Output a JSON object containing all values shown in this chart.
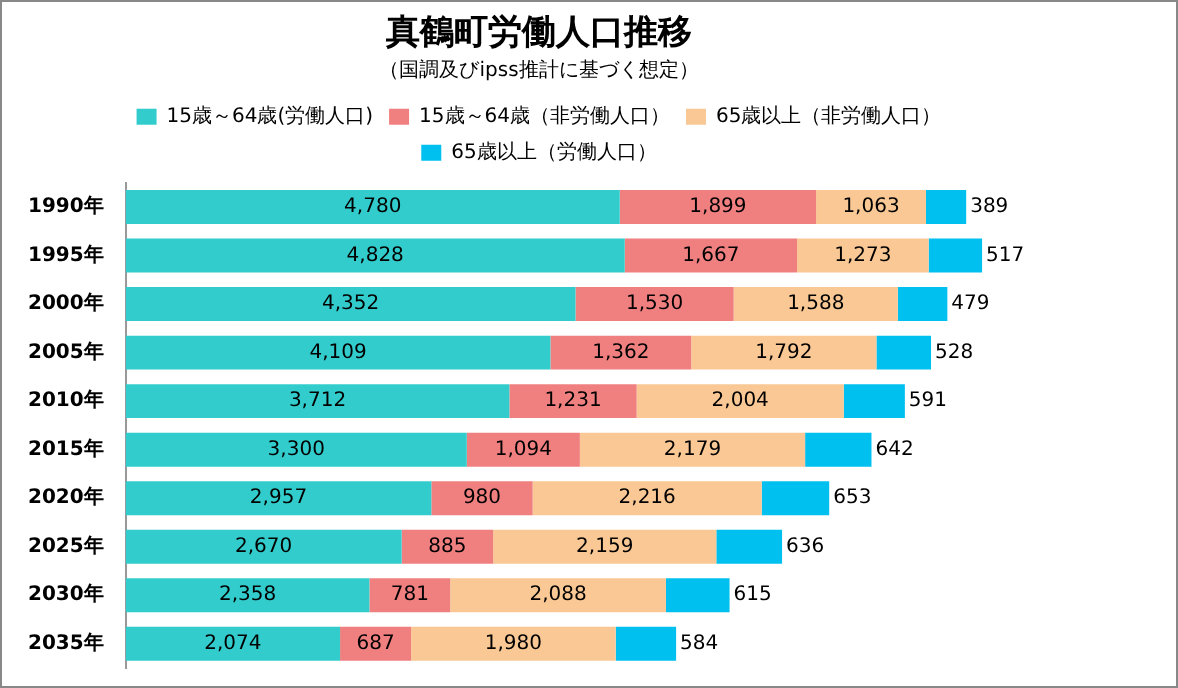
{
  "chart_data": {
    "type": "bar",
    "orientation": "horizontal",
    "stacked": true,
    "title": "真鶴町労働人口推移",
    "subtitle": "（国調及びipss推計に基づく想定）",
    "categories": [
      "1990年",
      "1995年",
      "2000年",
      "2005年",
      "2010年",
      "2015年",
      "2020年",
      "2025年",
      "2030年",
      "2035年"
    ],
    "series": [
      {
        "name": "15歳～64歳(労働人口)",
        "color": "#33cccc",
        "values": [
          4780,
          4828,
          4352,
          4109,
          3712,
          3300,
          2957,
          2670,
          2358,
          2074
        ],
        "value_labels": [
          "4,780",
          "4,828",
          "4,352",
          "4,109",
          "3,712",
          "3,300",
          "2,957",
          "2,670",
          "2,358",
          "2,074"
        ]
      },
      {
        "name": "15歳～64歳（非労働人口）",
        "color": "#f08080",
        "values": [
          1899,
          1667,
          1530,
          1362,
          1231,
          1094,
          980,
          885,
          781,
          687
        ],
        "value_labels": [
          "1,899",
          "1,667",
          "1,530",
          "1,362",
          "1,231",
          "1,094",
          "980",
          "885",
          "781",
          "687"
        ]
      },
      {
        "name": "65歳以上（非労働人口）",
        "color": "#f9c895",
        "values": [
          1063,
          1273,
          1588,
          1792,
          2004,
          2179,
          2216,
          2159,
          2088,
          1980
        ],
        "value_labels": [
          "1,063",
          "1,273",
          "1,588",
          "1,792",
          "2,004",
          "2,179",
          "2,216",
          "2,159",
          "2,088",
          "1,980"
        ]
      },
      {
        "name": "65歳以上（労働人口）",
        "color": "#00c0f0",
        "values": [
          389,
          517,
          479,
          528,
          591,
          642,
          653,
          636,
          615,
          584
        ],
        "value_labels": [
          "389",
          "517",
          "479",
          "528",
          "591",
          "642",
          "653",
          "636",
          "615",
          "584"
        ]
      }
    ],
    "legend": "top",
    "tick_labels": "y"
  }
}
